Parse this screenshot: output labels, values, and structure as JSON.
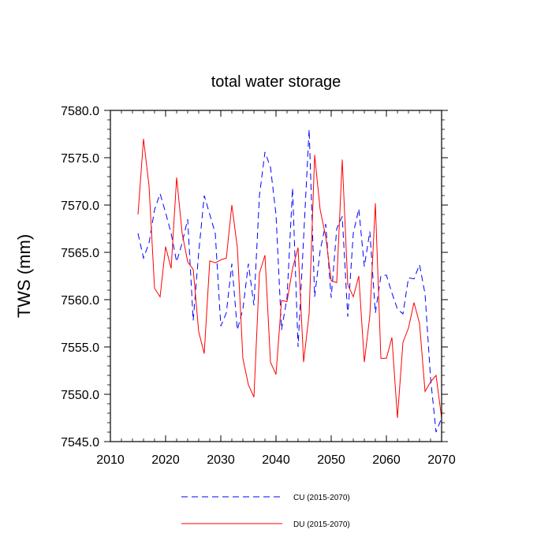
{
  "chart_data": {
    "type": "line",
    "title": "total water storage",
    "ylabel": "TWS  (mm)",
    "xlabel": "",
    "xlim": [
      2010,
      2070
    ],
    "ylim": [
      7545.0,
      7580.0
    ],
    "x_ticks": [
      2010,
      2020,
      2030,
      2040,
      2050,
      2060,
      2070
    ],
    "x_tick_labels": [
      "2010",
      "2020",
      "2030",
      "2040",
      "2050",
      "2060",
      "2070"
    ],
    "y_ticks": [
      7545.0,
      7550.0,
      7555.0,
      7560.0,
      7565.0,
      7570.0,
      7575.0,
      7580.0
    ],
    "y_tick_labels": [
      "7545.0",
      "7550.0",
      "7555.0",
      "7560.0",
      "7565.0",
      "7570.0",
      "7575.0",
      "7580.0"
    ],
    "x": [
      2015,
      2016,
      2017,
      2018,
      2019,
      2020,
      2021,
      2022,
      2023,
      2024,
      2025,
      2026,
      2027,
      2028,
      2029,
      2030,
      2031,
      2032,
      2033,
      2034,
      2035,
      2036,
      2037,
      2038,
      2039,
      2040,
      2041,
      2042,
      2043,
      2044,
      2045,
      2046,
      2047,
      2048,
      2049,
      2050,
      2051,
      2052,
      2053,
      2054,
      2055,
      2056,
      2057,
      2058,
      2059,
      2060,
      2061,
      2062,
      2063,
      2064,
      2065,
      2066,
      2067,
      2068,
      2069,
      2070
    ],
    "series": [
      {
        "name": "CU (2015-2070)",
        "color": "#0000ff",
        "style": "dashed",
        "values": [
          7567.0,
          7564.4,
          7566.0,
          7569.5,
          7571.2,
          7569.2,
          7567.0,
          7564.0,
          7566.0,
          7568.5,
          7557.8,
          7565.0,
          7571.0,
          7569.0,
          7567.0,
          7557.2,
          7558.6,
          7563.8,
          7556.8,
          7559.0,
          7563.8,
          7559.4,
          7571.0,
          7575.6,
          7574.0,
          7569.0,
          7556.8,
          7560.2,
          7571.8,
          7555.0,
          7566.5,
          7578.0,
          7560.3,
          7565.2,
          7568.0,
          7560.2,
          7567.5,
          7568.8,
          7558.2,
          7567.0,
          7569.6,
          7563.5,
          7567.2,
          7558.6,
          7562.5,
          7562.6,
          7560.7,
          7559.0,
          7558.5,
          7562.3,
          7562.2,
          7563.7,
          7560.6,
          7551.7,
          7546.0,
          7547.5
        ]
      },
      {
        "name": "DU (2015-2070)",
        "color": "#ff0000",
        "style": "solid",
        "values": [
          7569.0,
          7577.0,
          7572.0,
          7561.2,
          7560.3,
          7565.6,
          7563.3,
          7572.9,
          7567.0,
          7564.0,
          7563.2,
          7556.6,
          7554.3,
          7564.1,
          7563.9,
          7564.2,
          7564.4,
          7570.0,
          7565.5,
          7553.8,
          7551.0,
          7549.7,
          7562.8,
          7564.7,
          7553.4,
          7552.1,
          7559.9,
          7559.8,
          7563.3,
          7565.5,
          7553.4,
          7558.5,
          7575.3,
          7569.5,
          7566.7,
          7562.0,
          7561.8,
          7574.8,
          7561.6,
          7560.3,
          7562.5,
          7553.4,
          7558.3,
          7570.2,
          7553.8,
          7553.8,
          7556.0,
          7547.5,
          7555.5,
          7557.0,
          7559.7,
          7557.5,
          7550.3,
          7551.3,
          7552.0,
          7547.5
        ]
      }
    ],
    "legend_position": "bottom",
    "grid": false
  }
}
